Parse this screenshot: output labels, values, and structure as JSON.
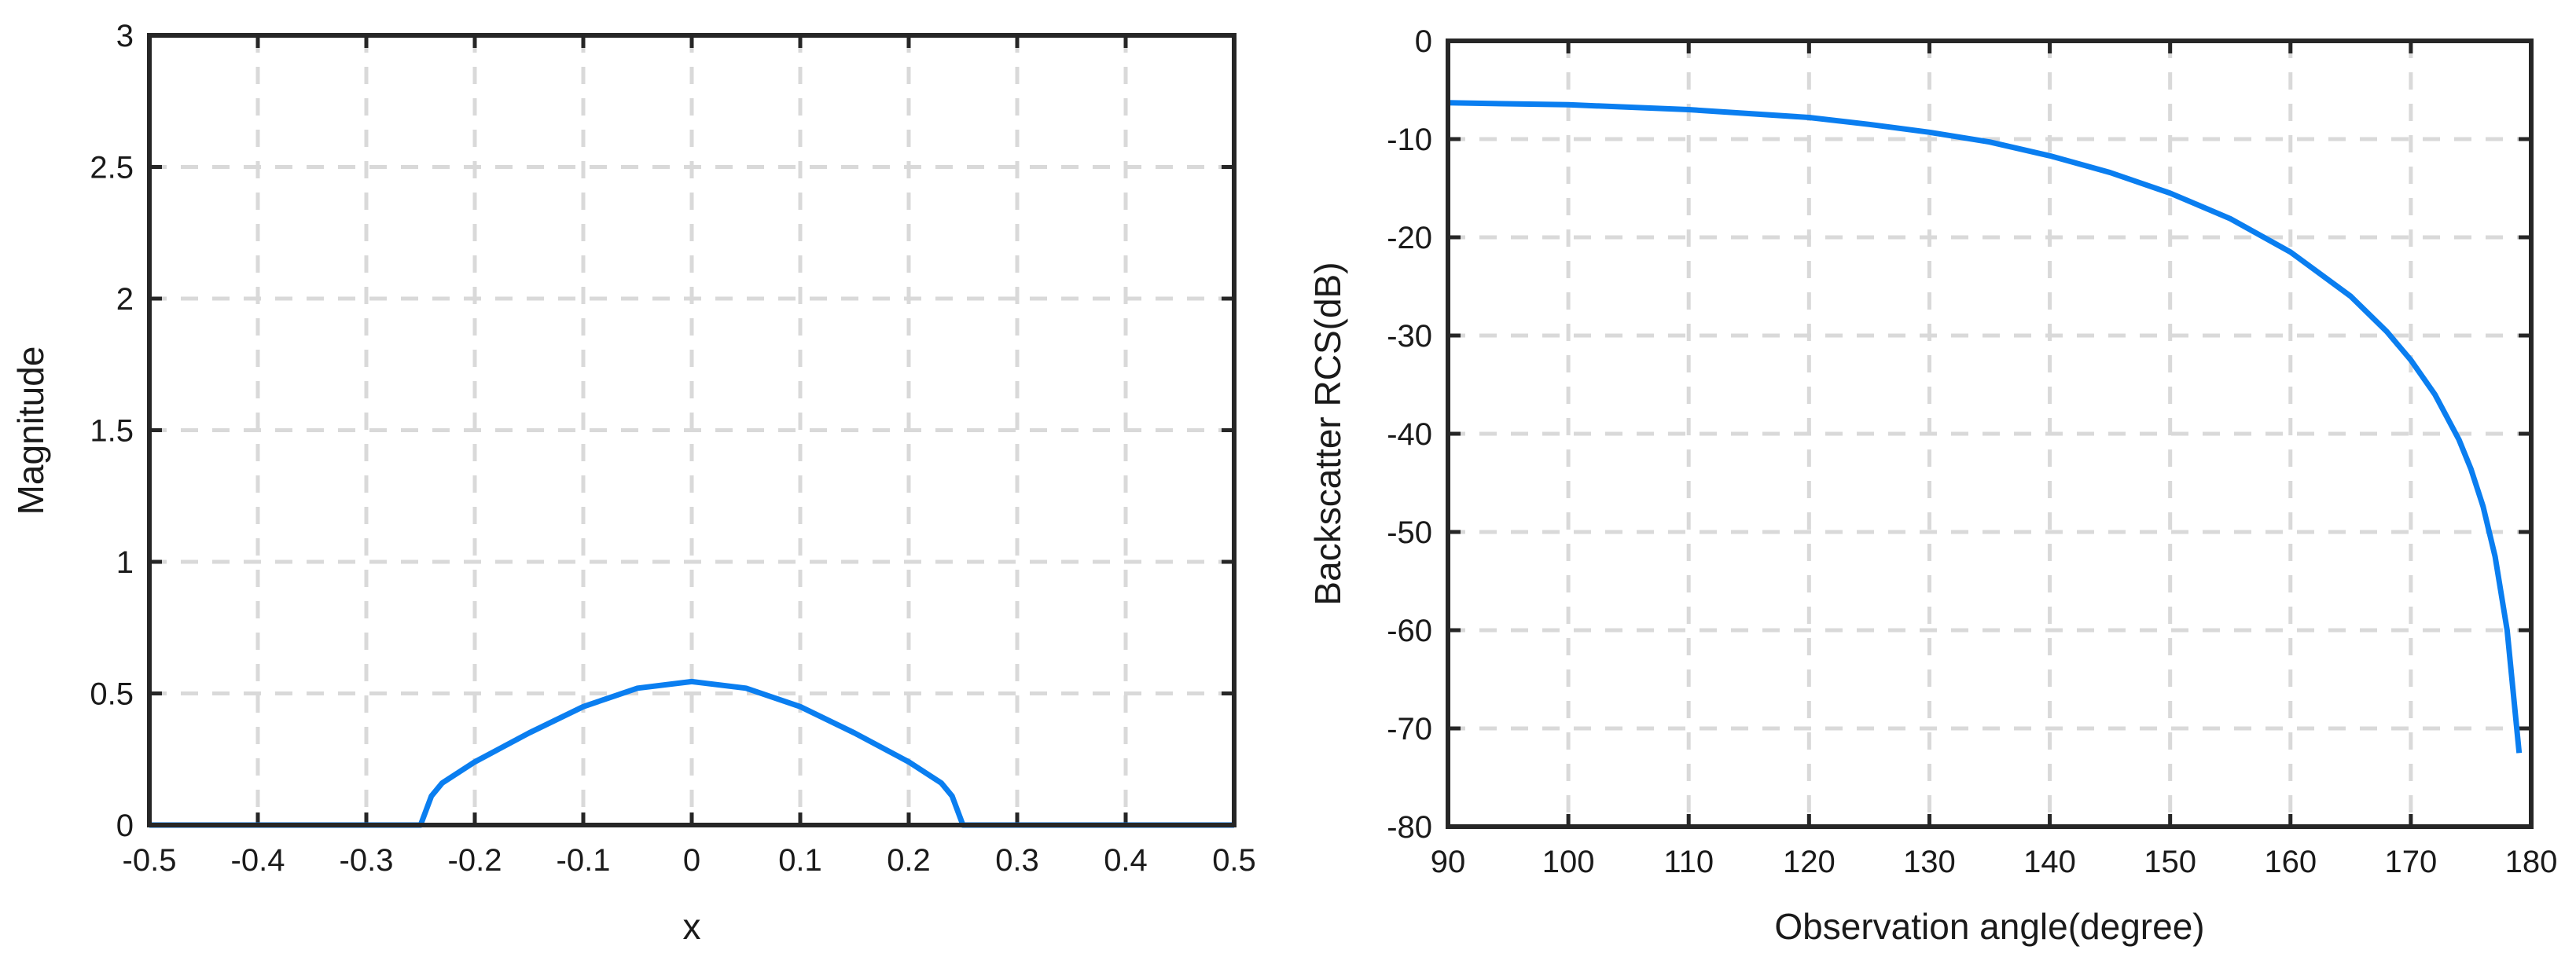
{
  "chart_data": [
    {
      "type": "line",
      "title": "",
      "xlabel": "x",
      "ylabel": "Magnitude",
      "xlim": [
        -0.5,
        0.5
      ],
      "ylim": [
        0,
        3
      ],
      "xticks": [
        -0.5,
        -0.4,
        -0.3,
        -0.2,
        -0.1,
        0,
        0.1,
        0.2,
        0.3,
        0.4,
        0.5
      ],
      "xtick_labels": [
        "-0.5",
        "-0.4",
        "-0.3",
        "-0.2",
        "-0.1",
        "0",
        "0.1",
        "0.2",
        "0.3",
        "0.4",
        "0.5"
      ],
      "yticks": [
        0,
        0.5,
        1,
        1.5,
        2,
        2.5,
        3
      ],
      "ytick_labels": [
        "0",
        "0.5",
        "1",
        "1.5",
        "2",
        "2.5",
        "3"
      ],
      "grid": true,
      "color": "#0a7ef0",
      "series": [
        {
          "x": [
            -0.5,
            -0.25,
            -0.24,
            -0.23,
            -0.2,
            -0.15,
            -0.1,
            -0.05,
            0,
            0.05,
            0.1,
            0.15,
            0.2,
            0.23,
            0.24,
            0.25,
            0.5
          ],
          "y": [
            0,
            0,
            0.11,
            0.16,
            0.24,
            0.35,
            0.45,
            0.52,
            0.545,
            0.52,
            0.45,
            0.35,
            0.24,
            0.16,
            0.11,
            0,
            0
          ]
        }
      ]
    },
    {
      "type": "line",
      "title": "",
      "xlabel": "Observation angle(degree)",
      "ylabel": "Backscatter RCS(dB)",
      "xlim": [
        90,
        180
      ],
      "ylim": [
        -80,
        0
      ],
      "xticks": [
        90,
        100,
        110,
        120,
        130,
        140,
        150,
        160,
        170,
        180
      ],
      "xtick_labels": [
        "90",
        "100",
        "110",
        "120",
        "130",
        "140",
        "150",
        "160",
        "170",
        "180"
      ],
      "yticks": [
        -80,
        -70,
        -60,
        -50,
        -40,
        -30,
        -20,
        -10,
        0
      ],
      "ytick_labels": [
        "-80",
        "-70",
        "-60",
        "-50",
        "-40",
        "-30",
        "-20",
        "-10",
        "0"
      ],
      "grid": true,
      "color": "#0a7ef0",
      "series": [
        {
          "x": [
            90,
            100,
            110,
            120,
            125,
            130,
            135,
            140,
            145,
            150,
            155,
            160,
            165,
            168,
            170,
            172,
            174,
            175,
            176,
            177,
            178,
            179
          ],
          "y": [
            -6.3,
            -6.5,
            -7.0,
            -7.8,
            -8.5,
            -9.3,
            -10.3,
            -11.7,
            -13.4,
            -15.5,
            -18.1,
            -21.5,
            -26.0,
            -29.6,
            -32.5,
            -36.0,
            -40.6,
            -43.6,
            -47.4,
            -52.5,
            -60.0,
            -72.5
          ]
        }
      ]
    }
  ]
}
